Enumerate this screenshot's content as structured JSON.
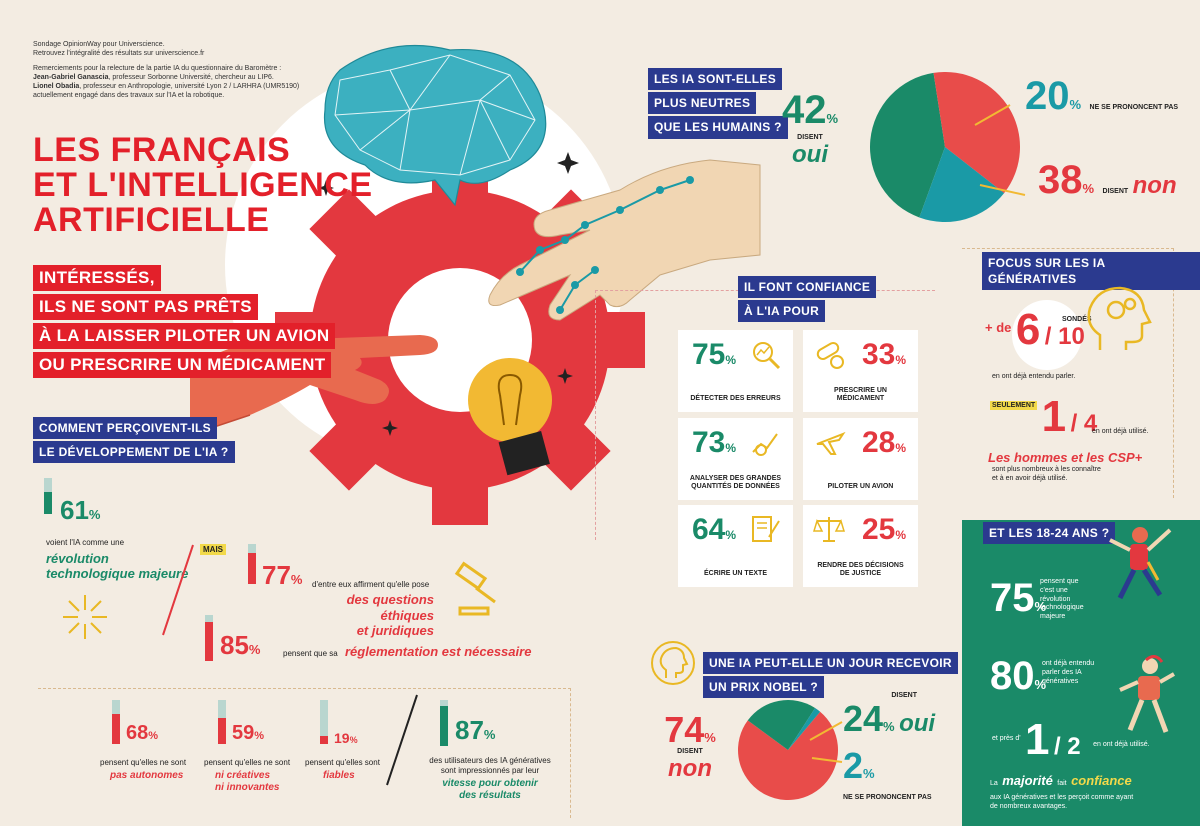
{
  "credits": {
    "line1": "Sondage OpinionWay pour Universcience.",
    "line2": "Retrouvez l'intégralité des résultats sur universcience.fr",
    "line3": "Remerciements pour la relecture de la partie IA du questionnaire du Baromètre :",
    "line4_name": "Jean-Gabriel Ganascia",
    "line4_rest": ", professeur Sorbonne Université, chercheur au LIP6.",
    "line5_name": "Lionel Obadia",
    "line5_rest": ", professeur en Anthropologie, université Lyon 2 / LARHRA (UMR5190)",
    "line6": "actuellement engagé dans des travaux sur l'IA et la robotique."
  },
  "title": {
    "line1": "LES FRANÇAIS",
    "line2": "ET L'INTELLIGENCE",
    "line3": "ARTIFICIELLE"
  },
  "subtitle": {
    "line1": "INTÉRESSÉS,",
    "line2": "ILS NE SONT PAS PRÊTS",
    "line3": "À LA LAISSER PILOTER UN AVION",
    "line4": "OU PRESCRIRE UN MÉDICAMENT"
  },
  "perception": {
    "question_line1": "COMMENT PERÇOIVENT-ILS",
    "question_line2": "LE DÉVELOPPEMENT DE L'IA ?",
    "stat1": {
      "value": "61",
      "unit": "%",
      "label": "voient l'IA comme une",
      "highlight_line1": "révolution",
      "highlight_line2": "technologique majeure",
      "fraction": 0.61
    },
    "mais": "MAIS",
    "stat2": {
      "value": "77",
      "unit": "%",
      "label": "d'entre eux affirment qu'elle pose",
      "highlight_line1": "des questions éthiques",
      "highlight_line2": "et juridiques",
      "fraction": 0.77
    },
    "stat3": {
      "value": "85",
      "unit": "%",
      "label": "pensent que sa",
      "highlight": "réglementation est nécessaire",
      "fraction": 0.85
    },
    "stat4": {
      "value": "68",
      "unit": "%",
      "label": "pensent qu'elles ne sont",
      "highlight": "pas autonomes",
      "fraction": 0.68
    },
    "stat5": {
      "value": "59",
      "unit": "%",
      "label": "pensent qu'elles ne sont",
      "highlight_line1": "ni créatives",
      "highlight_line2": "ni innovantes",
      "fraction": 0.59
    },
    "stat6": {
      "value": "19",
      "unit": "%",
      "label": "pensent qu'elles sont",
      "highlight": "fiables",
      "fraction": 0.19
    },
    "stat7": {
      "value": "87",
      "unit": "%",
      "label_line1": "des utilisateurs des IA génératives",
      "label_line2": "sont impressionnés par leur",
      "highlight_line1": "vitesse pour obtenir",
      "highlight_line2": "des résultats",
      "fraction": 0.87
    }
  },
  "neutral": {
    "question_line1": "LES IA SONT-ELLES",
    "question_line2": "PLUS NEUTRES",
    "question_line3": "QUE LES HUMAINS ?",
    "yes": {
      "value": "42",
      "unit": "%",
      "label": "DISENT",
      "word": "oui"
    },
    "no": {
      "value": "38",
      "unit": "%",
      "label": "DISENT",
      "word": "non"
    },
    "undecided": {
      "value": "20",
      "unit": "%",
      "label": "NE SE PRONONCENT PAS"
    }
  },
  "trust": {
    "question_line1": "IL FONT CONFIANCE",
    "question_line2": "À L'IA POUR",
    "items": [
      {
        "value": "75",
        "unit": "%",
        "label_line1": "DÉTECTER DES ERREURS",
        "label_line2": "",
        "icon": "magnifier-chart-icon"
      },
      {
        "value": "33",
        "unit": "%",
        "label_line1": "PRESCRIRE UN",
        "label_line2": "MÉDICAMENT",
        "icon": "pills-icon"
      },
      {
        "value": "73",
        "unit": "%",
        "label_line1": "ANALYSER DES GRANDES",
        "label_line2": "QUANTITÉS DE DONNÉES",
        "icon": "chart-search-icon"
      },
      {
        "value": "28",
        "unit": "%",
        "label_line1": "PILOTER UN AVION",
        "label_line2": "",
        "icon": "airplane-icon"
      },
      {
        "value": "64",
        "unit": "%",
        "label_line1": "ÉCRIRE UN TEXTE",
        "label_line2": "",
        "icon": "document-pen-icon"
      },
      {
        "value": "25",
        "unit": "%",
        "label_line1": "RENDRE DES DÉCISIONS",
        "label_line2": "DE JUSTICE",
        "icon": "scales-icon"
      }
    ]
  },
  "generative": {
    "title": "FOCUS SUR LES IA GÉNÉRATIVES",
    "plus_de": "+ de",
    "six": "6",
    "sur_dix": "/ 10",
    "sondes": "SONDÉS",
    "heard": "en ont déjà entendu parler.",
    "seulement": "SEULEMENT",
    "one": "1",
    "sur_quatre": "/ 4",
    "used": "en ont déjà utilisé.",
    "men_line": "Les hommes et les CSP+",
    "men_sub1": "sont plus nombreux à les connaître",
    "men_sub2": "et à en avoir déjà utilisé."
  },
  "youth": {
    "title": "ET LES 18-24 ANS ?",
    "stat1": {
      "value": "75",
      "unit": "%",
      "line1": "pensent que",
      "line2": "c'est une",
      "line3": "révolution",
      "line4": "technologique",
      "line5": "majeure"
    },
    "stat2": {
      "value": "80",
      "unit": "%",
      "line1": "ont déjà entendu",
      "line2": "parler des IA",
      "line3": "génératives"
    },
    "pres_de": "et près d'",
    "one": "1",
    "sur_deux": "/ 2",
    "used": "en ont déjà utilisé.",
    "la": "La",
    "majorite": "majorité",
    "fait": "fait",
    "confiance": "confiance",
    "sub1": "aux IA génératives et les perçoit comme ayant",
    "sub2": "de nombreux avantages."
  },
  "nobel": {
    "question_line1": "UNE IA PEUT-ELLE UN JOUR RECEVOIR",
    "question_line2": "UN PRIX NOBEL ?",
    "no": {
      "value": "74",
      "unit": "%",
      "label": "DISENT",
      "word": "non"
    },
    "yes": {
      "value": "24",
      "unit": "%",
      "label": "DISENT",
      "word": "oui"
    },
    "undecided": {
      "value": "2",
      "unit": "%",
      "label": "NE SE PRONONCENT PAS"
    }
  },
  "chart_data": [
    {
      "type": "pie",
      "title": "",
      "categories": [
        "oui",
        "non",
        "ne se prononcent pas"
      ],
      "values": [
        42,
        38,
        20
      ],
      "colors": [
        "#1a8a68",
        "#e84c4a",
        "#1a9aa6"
      ]
    },
    {
      "type": "pie",
      "title": "",
      "categories": [
        "non",
        "oui",
        "ne se prononcent pas"
      ],
      "values": [
        74,
        24,
        2
      ],
      "colors": [
        "#e84c4a",
        "#1a8a68",
        "#1a9aa6"
      ]
    }
  ],
  "colors": {
    "red": "#e3383f",
    "green": "#1a8a68",
    "teal": "#1a9aa6",
    "navy": "#2b3a8f",
    "yellow": "#f2b933",
    "bg": "#f3ece2"
  }
}
